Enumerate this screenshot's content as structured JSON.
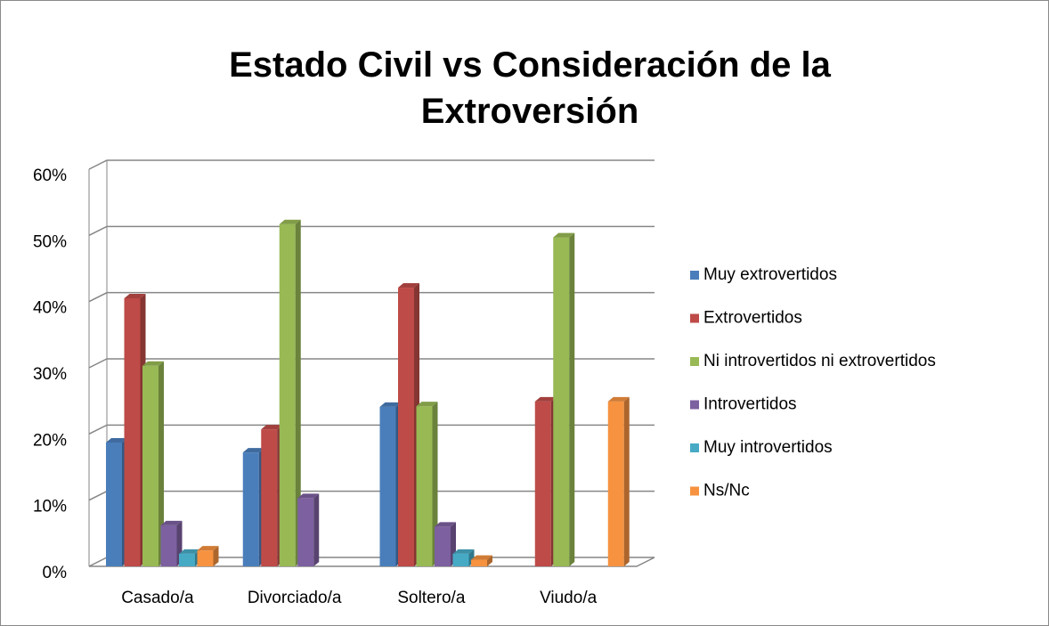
{
  "chart_data": {
    "type": "bar",
    "title": "Estado Civil vs Consideración  de la Extroversión",
    "categories": [
      "Casado/a",
      "Divorciado/a",
      "Soltero/a",
      "Viudo/a"
    ],
    "series": [
      {
        "name": "Muy extrovertidos",
        "color": "#4a7ebb",
        "values": [
          18.7,
          17.2,
          24.1,
          0
        ]
      },
      {
        "name": "Extrovertidos",
        "color": "#be4b48",
        "values": [
          40.5,
          20.7,
          42.1,
          24.9
        ]
      },
      {
        "name": "Ni introvertidos ni extrovertidos",
        "color": "#98b954",
        "values": [
          30.3,
          51.7,
          24.2,
          49.7
        ]
      },
      {
        "name": "Introvertidos",
        "color": "#7d60a0",
        "values": [
          6.2,
          10.3,
          6.0,
          0
        ]
      },
      {
        "name": "Muy introvertidos",
        "color": "#46aac5",
        "values": [
          1.9,
          0,
          1.9,
          0
        ]
      },
      {
        "name": "Ns/Nc",
        "color": "#f69240",
        "values": [
          2.4,
          0,
          1.0,
          24.9
        ]
      }
    ],
    "ylim": [
      0,
      60
    ],
    "yticks": [
      {
        "value": 0,
        "label": "0%"
      },
      {
        "value": 10,
        "label": "10%"
      },
      {
        "value": 20,
        "label": "20%"
      },
      {
        "value": 30,
        "label": "30%"
      },
      {
        "value": 40,
        "label": "40%"
      },
      {
        "value": 50,
        "label": "50%"
      },
      {
        "value": 60,
        "label": "60%"
      }
    ],
    "grid": true,
    "legend": "right"
  }
}
